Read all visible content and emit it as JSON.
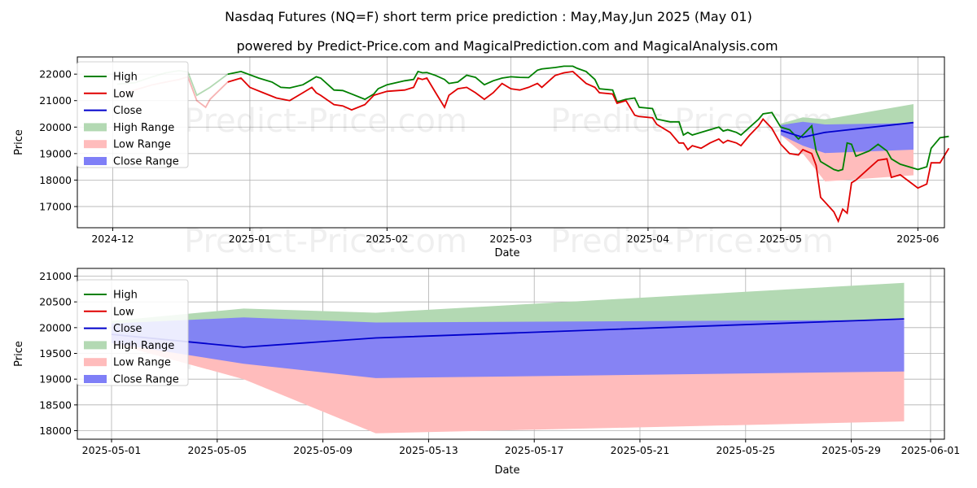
{
  "title_line1": "Nasdaq Futures (NQ=F) short term price prediction : May,May,Jun 2025 (May 01)",
  "title_line2": "powered by Predict-Price.com and MagicalPrediction.com and MagicalAnalysis.com",
  "watermark": "Predict-Price.com",
  "colors": {
    "high": "#008000",
    "low": "#e00000",
    "close": "#0000cc",
    "high_range": "#b3d9b3",
    "low_range": "#ffbcbc",
    "close_range": "#7f7ff7"
  },
  "chart_data": [
    {
      "type": "line",
      "xlabel": "Date",
      "ylabel": "Price",
      "grid": true,
      "legend": "upper-left",
      "x_ticks": [
        "2024-12",
        "2025-01",
        "2025-02",
        "2025-03",
        "2025-04",
        "2025-05",
        "2025-06"
      ],
      "y_ticks": [
        17000,
        18000,
        19000,
        20000,
        21000,
        22000
      ],
      "xlim": [
        "2024-11-23",
        "2025-06-07"
      ],
      "ylim": [
        16200,
        22650
      ],
      "legend_entries": [
        "High",
        "Low",
        "Close",
        "High Range",
        "Low Range",
        "Close Range"
      ],
      "series": [
        {
          "name": "High",
          "points": [
            [
              "2024-12-02",
              21620
            ],
            [
              "2024-12-06",
              21680
            ],
            [
              "2024-12-10",
              21900
            ],
            [
              "2024-12-13",
              22050
            ],
            [
              "2024-12-16",
              22130
            ],
            [
              "2024-12-18",
              22080
            ],
            [
              "2024-12-20",
              21200
            ],
            [
              "2024-12-23",
              21500
            ],
            [
              "2024-12-27",
              22000
            ],
            [
              "2024-12-30",
              22100
            ],
            [
              "2025-01-03",
              21850
            ],
            [
              "2025-01-06",
              21700
            ],
            [
              "2025-01-08",
              21500
            ],
            [
              "2025-01-10",
              21480
            ],
            [
              "2025-01-13",
              21600
            ],
            [
              "2025-01-15",
              21800
            ],
            [
              "2025-01-16",
              21900
            ],
            [
              "2025-01-17",
              21850
            ],
            [
              "2025-01-20",
              21400
            ],
            [
              "2025-01-22",
              21380
            ],
            [
              "2025-01-24",
              21250
            ],
            [
              "2025-01-27",
              21050
            ],
            [
              "2025-01-29",
              21250
            ],
            [
              "2025-01-30",
              21450
            ],
            [
              "2025-02-01",
              21600
            ],
            [
              "2025-02-05",
              21750
            ],
            [
              "2025-02-07",
              21800
            ],
            [
              "2025-02-08",
              22100
            ],
            [
              "2025-02-09",
              22050
            ],
            [
              "2025-02-10",
              22060
            ],
            [
              "2025-02-12",
              21950
            ],
            [
              "2025-02-14",
              21800
            ],
            [
              "2025-02-15",
              21650
            ],
            [
              "2025-02-17",
              21700
            ],
            [
              "2025-02-19",
              21960
            ],
            [
              "2025-02-21",
              21880
            ],
            [
              "2025-02-23",
              21600
            ],
            [
              "2025-02-25",
              21750
            ],
            [
              "2025-02-27",
              21850
            ],
            [
              "2025-03-01",
              21900
            ],
            [
              "2025-03-03",
              21880
            ],
            [
              "2025-03-05",
              21870
            ],
            [
              "2025-03-07",
              22150
            ],
            [
              "2025-03-08",
              22200
            ],
            [
              "2025-03-11",
              22250
            ],
            [
              "2025-03-13",
              22300
            ],
            [
              "2025-03-15",
              22300
            ],
            [
              "2025-03-16",
              22220
            ],
            [
              "2025-03-18",
              22100
            ],
            [
              "2025-03-20",
              21800
            ],
            [
              "2025-03-21",
              21450
            ],
            [
              "2025-03-24",
              21400
            ],
            [
              "2025-03-25",
              20950
            ],
            [
              "2025-03-27",
              21050
            ],
            [
              "2025-03-29",
              21100
            ],
            [
              "2025-03-30",
              20750
            ],
            [
              "2025-04-02",
              20700
            ],
            [
              "2025-04-03",
              20300
            ],
            [
              "2025-04-06",
              20200
            ],
            [
              "2025-04-08",
              20200
            ],
            [
              "2025-04-09",
              19700
            ],
            [
              "2025-04-10",
              19800
            ],
            [
              "2025-04-11",
              19700
            ],
            [
              "2025-04-13",
              19800
            ],
            [
              "2025-04-15",
              19900
            ],
            [
              "2025-04-17",
              20000
            ],
            [
              "2025-04-18",
              19850
            ],
            [
              "2025-04-19",
              19900
            ],
            [
              "2025-04-21",
              19800
            ],
            [
              "2025-04-22",
              19700
            ],
            [
              "2025-04-24",
              20000
            ],
            [
              "2025-04-26",
              20300
            ],
            [
              "2025-04-27",
              20500
            ],
            [
              "2025-04-29",
              20550
            ],
            [
              "2025-05-01",
              20000
            ],
            [
              "2025-05-03",
              19900
            ],
            [
              "2025-05-05",
              19550
            ],
            [
              "2025-05-06",
              19700
            ],
            [
              "2025-05-08",
              20050
            ],
            [
              "2025-05-09",
              19100
            ],
            [
              "2025-05-10",
              18700
            ],
            [
              "2025-05-13",
              18400
            ],
            [
              "2025-05-14",
              18350
            ],
            [
              "2025-05-15",
              18400
            ],
            [
              "2025-05-16",
              19400
            ],
            [
              "2025-05-17",
              19350
            ],
            [
              "2025-05-18",
              18900
            ],
            [
              "2025-05-21",
              19100
            ],
            [
              "2025-05-23",
              19350
            ],
            [
              "2025-05-25",
              19100
            ],
            [
              "2025-05-26",
              18800
            ],
            [
              "2025-05-28",
              18600
            ],
            [
              "2025-05-30",
              18500
            ],
            [
              "2025-06-01",
              18400
            ],
            [
              "2025-06-03",
              18500
            ],
            [
              "2025-06-04",
              19200
            ],
            [
              "2025-06-06",
              19600
            ],
            [
              "2025-06-08",
              19650
            ]
          ]
        },
        {
          "name": "Low",
          "points": [
            [
              "2024-12-02",
              21200
            ],
            [
              "2024-12-06",
              21400
            ],
            [
              "2024-12-10",
              21600
            ],
            [
              "2024-12-13",
              21700
            ],
            [
              "2024-12-16",
              21800
            ],
            [
              "2024-12-18",
              21900
            ],
            [
              "2024-12-20",
              21000
            ],
            [
              "2024-12-22",
              20750
            ],
            [
              "2024-12-23",
              21050
            ],
            [
              "2024-12-27",
              21700
            ],
            [
              "2024-12-30",
              21850
            ],
            [
              "2025-01-01",
              21500
            ],
            [
              "2025-01-04",
              21300
            ],
            [
              "2025-01-07",
              21100
            ],
            [
              "2025-01-10",
              21000
            ],
            [
              "2025-01-13",
              21300
            ],
            [
              "2025-01-15",
              21500
            ],
            [
              "2025-01-16",
              21300
            ],
            [
              "2025-01-17",
              21200
            ],
            [
              "2025-01-20",
              20850
            ],
            [
              "2025-01-22",
              20800
            ],
            [
              "2025-01-24",
              20650
            ],
            [
              "2025-01-27",
              20850
            ],
            [
              "2025-01-29",
              21200
            ],
            [
              "2025-02-01",
              21350
            ],
            [
              "2025-02-05",
              21400
            ],
            [
              "2025-02-07",
              21500
            ],
            [
              "2025-02-08",
              21850
            ],
            [
              "2025-02-09",
              21800
            ],
            [
              "2025-02-10",
              21850
            ],
            [
              "2025-02-12",
              21300
            ],
            [
              "2025-02-14",
              20750
            ],
            [
              "2025-02-15",
              21200
            ],
            [
              "2025-02-17",
              21450
            ],
            [
              "2025-02-19",
              21500
            ],
            [
              "2025-02-21",
              21300
            ],
            [
              "2025-02-23",
              21050
            ],
            [
              "2025-02-25",
              21300
            ],
            [
              "2025-02-27",
              21650
            ],
            [
              "2025-03-01",
              21450
            ],
            [
              "2025-03-03",
              21400
            ],
            [
              "2025-03-05",
              21500
            ],
            [
              "2025-03-07",
              21650
            ],
            [
              "2025-03-08",
              21500
            ],
            [
              "2025-03-11",
              21950
            ],
            [
              "2025-03-13",
              22050
            ],
            [
              "2025-03-15",
              22100
            ],
            [
              "2025-03-16",
              21950
            ],
            [
              "2025-03-18",
              21650
            ],
            [
              "2025-03-20",
              21500
            ],
            [
              "2025-03-21",
              21300
            ],
            [
              "2025-03-24",
              21250
            ],
            [
              "2025-03-25",
              20900
            ],
            [
              "2025-03-27",
              21000
            ],
            [
              "2025-03-29",
              20450
            ],
            [
              "2025-03-30",
              20400
            ],
            [
              "2025-04-02",
              20350
            ],
            [
              "2025-04-03",
              20100
            ],
            [
              "2025-04-06",
              19800
            ],
            [
              "2025-04-08",
              19400
            ],
            [
              "2025-04-09",
              19400
            ],
            [
              "2025-04-10",
              19150
            ],
            [
              "2025-04-11",
              19300
            ],
            [
              "2025-04-13",
              19200
            ],
            [
              "2025-04-15",
              19400
            ],
            [
              "2025-04-17",
              19550
            ],
            [
              "2025-04-18",
              19400
            ],
            [
              "2025-04-19",
              19500
            ],
            [
              "2025-04-21",
              19400
            ],
            [
              "2025-04-22",
              19300
            ],
            [
              "2025-04-24",
              19700
            ],
            [
              "2025-04-26",
              20050
            ],
            [
              "2025-04-27",
              20300
            ],
            [
              "2025-04-29",
              19950
            ],
            [
              "2025-05-01",
              19350
            ],
            [
              "2025-05-03",
              19000
            ],
            [
              "2025-05-05",
              18950
            ],
            [
              "2025-05-06",
              19150
            ],
            [
              "2025-05-08",
              19000
            ],
            [
              "2025-05-09",
              18550
            ],
            [
              "2025-05-10",
              17350
            ],
            [
              "2025-05-13",
              16800
            ],
            [
              "2025-05-14",
              16450
            ],
            [
              "2025-05-15",
              16900
            ],
            [
              "2025-05-16",
              16750
            ],
            [
              "2025-05-17",
              17900
            ],
            [
              "2025-05-18",
              18000
            ],
            [
              "2025-05-21",
              18450
            ],
            [
              "2025-05-23",
              18750
            ],
            [
              "2025-05-25",
              18800
            ],
            [
              "2025-05-26",
              18100
            ],
            [
              "2025-05-28",
              18200
            ],
            [
              "2025-05-30",
              17950
            ],
            [
              "2025-06-01",
              17700
            ],
            [
              "2025-06-03",
              17850
            ],
            [
              "2025-06-04",
              18650
            ],
            [
              "2025-06-06",
              18650
            ],
            [
              "2025-06-08",
              19200
            ]
          ]
        },
        {
          "name": "Close",
          "points": []
        }
      ],
      "note_range_start": "2025-05-01"
    },
    {
      "type": "line",
      "xlabel": "Date",
      "ylabel": "Price",
      "grid": true,
      "legend": "upper-left",
      "x_ticks": [
        "2025-05-01",
        "2025-05-05",
        "2025-05-09",
        "2025-05-13",
        "2025-05-17",
        "2025-05-21",
        "2025-05-25",
        "2025-05-29",
        "2025-06-01"
      ],
      "y_ticks": [
        18000,
        18500,
        19000,
        19500,
        20000,
        20500,
        21000
      ],
      "legend_entries": [
        "High",
        "Low",
        "Close",
        "High Range",
        "Low Range",
        "Close Range"
      ],
      "forecast": {
        "dates": [
          "2025-05-01",
          "2025-05-06",
          "2025-05-11",
          "2025-05-31"
        ],
        "close": [
          19870,
          19620,
          19800,
          20170
        ],
        "high_range_upper": [
          20130,
          20370,
          20290,
          20870
        ],
        "high_range_lower": [
          19870,
          19620,
          19800,
          20170
        ],
        "low_range_upper": [
          19870,
          19620,
          19800,
          20170
        ],
        "low_range_lower": [
          19700,
          19000,
          17950,
          18180
        ],
        "close_range_upper": [
          20080,
          20200,
          20100,
          20150
        ],
        "close_range_lower": [
          19700,
          19300,
          19020,
          19150
        ]
      }
    }
  ]
}
